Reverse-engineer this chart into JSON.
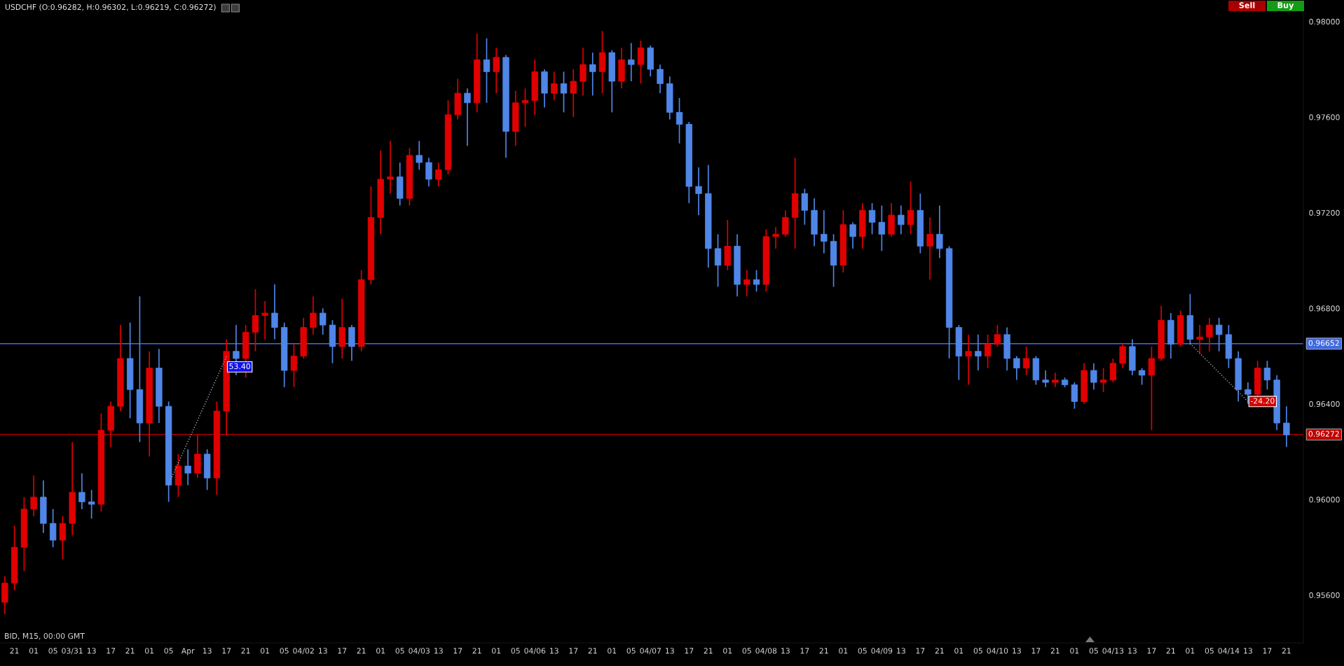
{
  "chart_data": {
    "type": "candlestick",
    "title": "USDCHF (O:0.96282, H:0.96302, L:0.96219, C:0.96272)",
    "categories": [
      null,
      "21",
      null,
      "01",
      null,
      "05",
      null,
      "03/31",
      null,
      "13",
      null,
      "17",
      null,
      "21",
      null,
      "01",
      null,
      "05",
      null,
      "Apr",
      null,
      "13",
      null,
      "17",
      null,
      "21",
      null,
      "01",
      null,
      "05",
      null,
      "04/02",
      null,
      "13",
      null,
      "17",
      null,
      "21",
      null,
      "01",
      null,
      "05",
      null,
      "04/03",
      null,
      "13",
      null,
      "17",
      null,
      "21",
      null,
      "01",
      null,
      "05",
      null,
      "04/06",
      null,
      "13",
      null,
      "17",
      null,
      "21",
      null,
      "01",
      null,
      "05",
      null,
      "04/07",
      null,
      "13",
      null,
      "17",
      null,
      "21",
      null,
      "01",
      null,
      "05",
      null,
      "04/08",
      null,
      "13",
      null,
      "17",
      null,
      "21",
      null,
      "01",
      null,
      "05",
      null,
      "04/09",
      null,
      "13",
      null,
      "17",
      null,
      "21",
      null,
      "01",
      null,
      "05",
      null,
      "04/10",
      null,
      "13",
      null,
      "17",
      null,
      "21",
      null,
      "01",
      null,
      "05",
      null,
      "04/13",
      null,
      "13",
      null,
      "17",
      null,
      "21",
      null,
      "01",
      null,
      "05",
      null,
      "04/14",
      null,
      "13",
      null,
      "17",
      null,
      "21"
    ],
    "ohlc": [
      [
        0.9557,
        0.9568,
        0.9552,
        0.9565
      ],
      [
        0.9565,
        0.9589,
        0.9562,
        0.958
      ],
      [
        0.958,
        0.9601,
        0.957,
        0.9596
      ],
      [
        0.9596,
        0.961,
        0.9593,
        0.9601
      ],
      [
        0.9601,
        0.9608,
        0.9586,
        0.959
      ],
      [
        0.959,
        0.9596,
        0.958,
        0.9583
      ],
      [
        0.9583,
        0.9593,
        0.9575,
        0.959
      ],
      [
        0.959,
        0.9624,
        0.9585,
        0.9603
      ],
      [
        0.9603,
        0.9611,
        0.9596,
        0.9599
      ],
      [
        0.9599,
        0.9604,
        0.9592,
        0.9598
      ],
      [
        0.9598,
        0.9636,
        0.9595,
        0.9629
      ],
      [
        0.9629,
        0.9641,
        0.9622,
        0.9639
      ],
      [
        0.9639,
        0.9673,
        0.9637,
        0.9659
      ],
      [
        0.9659,
        0.9674,
        0.9634,
        0.9646
      ],
      [
        0.9646,
        0.9685,
        0.9624,
        0.9632
      ],
      [
        0.9632,
        0.9662,
        0.9618,
        0.9655
      ],
      [
        0.9655,
        0.9663,
        0.9632,
        0.9639
      ],
      [
        0.9639,
        0.9641,
        0.9599,
        0.9606
      ],
      [
        0.9606,
        0.9619,
        0.9601,
        0.9614
      ],
      [
        0.9614,
        0.9621,
        0.9606,
        0.9611
      ],
      [
        0.9611,
        0.9627,
        0.9609,
        0.9619
      ],
      [
        0.9619,
        0.9621,
        0.9604,
        0.9609
      ],
      [
        0.9609,
        0.9641,
        0.9602,
        0.9637
      ],
      [
        0.9637,
        0.9667,
        0.9627,
        0.9662
      ],
      [
        0.9662,
        0.9673,
        0.9652,
        0.9659
      ],
      [
        0.9659,
        0.9673,
        0.9651,
        0.967
      ],
      [
        0.967,
        0.9688,
        0.9662,
        0.9677
      ],
      [
        0.9677,
        0.9683,
        0.9667,
        0.9678
      ],
      [
        0.9678,
        0.969,
        0.9667,
        0.9672
      ],
      [
        0.9672,
        0.9674,
        0.9647,
        0.9654
      ],
      [
        0.9654,
        0.9665,
        0.9647,
        0.966
      ],
      [
        0.966,
        0.9676,
        0.9659,
        0.9672
      ],
      [
        0.9672,
        0.9685,
        0.9669,
        0.9678
      ],
      [
        0.9678,
        0.968,
        0.9669,
        0.9673
      ],
      [
        0.9673,
        0.9675,
        0.9657,
        0.9664
      ],
      [
        0.9664,
        0.9684,
        0.9659,
        0.9672
      ],
      [
        0.9672,
        0.9673,
        0.9658,
        0.9664
      ],
      [
        0.9664,
        0.9696,
        0.9662,
        0.9692
      ],
      [
        0.9692,
        0.9731,
        0.969,
        0.9718
      ],
      [
        0.9718,
        0.9746,
        0.9711,
        0.9734
      ],
      [
        0.9734,
        0.975,
        0.9728,
        0.9735
      ],
      [
        0.9735,
        0.9741,
        0.9723,
        0.9726
      ],
      [
        0.9726,
        0.9747,
        0.9723,
        0.9744
      ],
      [
        0.9744,
        0.975,
        0.9738,
        0.9741
      ],
      [
        0.9741,
        0.9743,
        0.9731,
        0.9734
      ],
      [
        0.9734,
        0.9741,
        0.9731,
        0.9738
      ],
      [
        0.9738,
        0.9767,
        0.9736,
        0.9761
      ],
      [
        0.9761,
        0.9776,
        0.9759,
        0.977
      ],
      [
        0.977,
        0.9772,
        0.9748,
        0.9766
      ],
      [
        0.9766,
        0.9795,
        0.9762,
        0.9784
      ],
      [
        0.9784,
        0.9793,
        0.9766,
        0.9779
      ],
      [
        0.9779,
        0.9789,
        0.977,
        0.9785
      ],
      [
        0.9785,
        0.9786,
        0.9743,
        0.9754
      ],
      [
        0.9754,
        0.9771,
        0.9748,
        0.9766
      ],
      [
        0.9766,
        0.9772,
        0.9756,
        0.9767
      ],
      [
        0.9767,
        0.9784,
        0.9761,
        0.9779
      ],
      [
        0.9779,
        0.978,
        0.9764,
        0.977
      ],
      [
        0.977,
        0.9779,
        0.9767,
        0.9774
      ],
      [
        0.9774,
        0.9779,
        0.9762,
        0.977
      ],
      [
        0.977,
        0.978,
        0.976,
        0.9775
      ],
      [
        0.9775,
        0.9789,
        0.9769,
        0.9782
      ],
      [
        0.9782,
        0.9787,
        0.9769,
        0.9779
      ],
      [
        0.9779,
        0.9796,
        0.977,
        0.9787
      ],
      [
        0.9787,
        0.9788,
        0.9762,
        0.9775
      ],
      [
        0.9775,
        0.9789,
        0.9772,
        0.9784
      ],
      [
        0.9784,
        0.9791,
        0.9775,
        0.9782
      ],
      [
        0.9782,
        0.9792,
        0.9774,
        0.9789
      ],
      [
        0.9789,
        0.979,
        0.9777,
        0.978
      ],
      [
        0.978,
        0.9782,
        0.977,
        0.9774
      ],
      [
        0.9774,
        0.9777,
        0.9759,
        0.9762
      ],
      [
        0.9762,
        0.9768,
        0.9749,
        0.9757
      ],
      [
        0.9757,
        0.9758,
        0.9724,
        0.9731
      ],
      [
        0.9731,
        0.9739,
        0.9719,
        0.9728
      ],
      [
        0.9728,
        0.974,
        0.9697,
        0.9705
      ],
      [
        0.9705,
        0.9711,
        0.9689,
        0.9698
      ],
      [
        0.9698,
        0.9717,
        0.9696,
        0.9706
      ],
      [
        0.9706,
        0.9711,
        0.9685,
        0.969
      ],
      [
        0.969,
        0.9696,
        0.9685,
        0.9692
      ],
      [
        0.9692,
        0.9696,
        0.9687,
        0.969
      ],
      [
        0.969,
        0.9713,
        0.9687,
        0.971
      ],
      [
        0.971,
        0.9714,
        0.9705,
        0.9711
      ],
      [
        0.9711,
        0.9721,
        0.971,
        0.9718
      ],
      [
        0.9718,
        0.9743,
        0.9705,
        0.9728
      ],
      [
        0.9728,
        0.973,
        0.9715,
        0.9721
      ],
      [
        0.9721,
        0.9726,
        0.9706,
        0.9711
      ],
      [
        0.9711,
        0.9721,
        0.9703,
        0.9708
      ],
      [
        0.9708,
        0.9711,
        0.9689,
        0.9698
      ],
      [
        0.9698,
        0.9721,
        0.9695,
        0.9715
      ],
      [
        0.9715,
        0.9716,
        0.9705,
        0.971
      ],
      [
        0.971,
        0.9724,
        0.9705,
        0.9721
      ],
      [
        0.9721,
        0.9724,
        0.9711,
        0.9716
      ],
      [
        0.9716,
        0.9723,
        0.9704,
        0.9711
      ],
      [
        0.9711,
        0.9724,
        0.971,
        0.9719
      ],
      [
        0.9719,
        0.9723,
        0.9711,
        0.9715
      ],
      [
        0.9715,
        0.9733,
        0.9711,
        0.9721
      ],
      [
        0.9721,
        0.9728,
        0.9703,
        0.9706
      ],
      [
        0.9706,
        0.9718,
        0.9692,
        0.9711
      ],
      [
        0.9711,
        0.9723,
        0.9701,
        0.9705
      ],
      [
        0.9705,
        0.9706,
        0.9659,
        0.9672
      ],
      [
        0.9672,
        0.9673,
        0.965,
        0.966
      ],
      [
        0.966,
        0.9669,
        0.9648,
        0.9662
      ],
      [
        0.9662,
        0.9669,
        0.9654,
        0.966
      ],
      [
        0.966,
        0.9669,
        0.9655,
        0.9665
      ],
      [
        0.9665,
        0.9673,
        0.9664,
        0.9669
      ],
      [
        0.9669,
        0.9672,
        0.9654,
        0.9659
      ],
      [
        0.9659,
        0.966,
        0.965,
        0.9655
      ],
      [
        0.9655,
        0.9664,
        0.9652,
        0.9659
      ],
      [
        0.9659,
        0.966,
        0.9648,
        0.965
      ],
      [
        0.965,
        0.9654,
        0.9647,
        0.9649
      ],
      [
        0.9649,
        0.9653,
        0.9647,
        0.965
      ],
      [
        0.965,
        0.9651,
        0.9647,
        0.9648
      ],
      [
        0.9648,
        0.9649,
        0.9638,
        0.9641
      ],
      [
        0.9641,
        0.9657,
        0.964,
        0.9654
      ],
      [
        0.9654,
        0.9657,
        0.9646,
        0.9649
      ],
      [
        0.9649,
        0.9655,
        0.9645,
        0.965
      ],
      [
        0.965,
        0.9659,
        0.9649,
        0.9657
      ],
      [
        0.9657,
        0.9665,
        0.9655,
        0.9664
      ],
      [
        0.9664,
        0.9667,
        0.9652,
        0.9654
      ],
      [
        0.9654,
        0.9655,
        0.9648,
        0.9652
      ],
      [
        0.9652,
        0.9664,
        0.9629,
        0.9659
      ],
      [
        0.9659,
        0.9681,
        0.9658,
        0.9675
      ],
      [
        0.9675,
        0.9678,
        0.9659,
        0.9665
      ],
      [
        0.9665,
        0.9679,
        0.9664,
        0.9677
      ],
      [
        0.9677,
        0.9686,
        0.9665,
        0.9667
      ],
      [
        0.9667,
        0.9673,
        0.9661,
        0.9668
      ],
      [
        0.9668,
        0.9676,
        0.9662,
        0.9673
      ],
      [
        0.9673,
        0.9676,
        0.9662,
        0.9669
      ],
      [
        0.9669,
        0.9673,
        0.9655,
        0.9659
      ],
      [
        0.9659,
        0.9662,
        0.9641,
        0.9646
      ],
      [
        0.9646,
        0.9649,
        0.964,
        0.9644
      ],
      [
        0.9644,
        0.9658,
        0.9643,
        0.9655
      ],
      [
        0.9655,
        0.9658,
        0.9646,
        0.965
      ],
      [
        0.965,
        0.9652,
        0.9629,
        0.9632
      ],
      [
        0.9632,
        0.9639,
        0.9622,
        0.9627
      ]
    ],
    "colors": [
      "#e00000",
      "#e00000",
      "#e00000",
      "#e00000",
      "#4f86e8",
      "#4f86e8",
      "#e00000",
      "#e00000",
      "#4f86e8",
      "#4f86e8",
      "#e00000",
      "#e00000",
      "#e00000",
      "#4f86e8",
      "#4f86e8",
      "#e00000",
      "#4f86e8",
      "#4f86e8",
      "#e00000",
      "#4f86e8",
      "#e00000",
      "#4f86e8",
      "#e00000",
      "#e00000",
      "#4f86e8",
      "#e00000",
      "#e00000",
      "#e00000",
      "#4f86e8",
      "#4f86e8",
      "#e00000",
      "#e00000",
      "#e00000",
      "#4f86e8",
      "#4f86e8",
      "#e00000",
      "#4f86e8",
      "#e00000",
      "#e00000",
      "#e00000",
      "#e00000",
      "#4f86e8",
      "#e00000",
      "#4f86e8",
      "#4f86e8",
      "#e00000",
      "#e00000",
      "#e00000",
      "#4f86e8",
      "#e00000",
      "#4f86e8",
      "#e00000",
      "#4f86e8",
      "#e00000",
      "#e00000",
      "#e00000",
      "#4f86e8",
      "#e00000",
      "#4f86e8",
      "#e00000",
      "#e00000",
      "#4f86e8",
      "#e00000",
      "#4f86e8",
      "#e00000",
      "#4f86e8",
      "#e00000",
      "#4f86e8",
      "#4f86e8",
      "#4f86e8",
      "#4f86e8",
      "#4f86e8",
      "#4f86e8",
      "#4f86e8",
      "#4f86e8",
      "#e00000",
      "#4f86e8",
      "#e00000",
      "#4f86e8",
      "#e00000",
      "#e00000",
      "#e00000",
      "#e00000",
      "#4f86e8",
      "#4f86e8",
      "#4f86e8",
      "#4f86e8",
      "#e00000",
      "#4f86e8",
      "#e00000",
      "#4f86e8",
      "#4f86e8",
      "#e00000",
      "#4f86e8",
      "#e00000",
      "#4f86e8",
      "#e00000",
      "#4f86e8",
      "#4f86e8",
      "#4f86e8",
      "#e00000",
      "#4f86e8",
      "#e00000",
      "#e00000",
      "#4f86e8",
      "#4f86e8",
      "#e00000",
      "#4f86e8",
      "#4f86e8",
      "#e00000",
      "#4f86e8",
      "#4f86e8",
      "#e00000",
      "#4f86e8",
      "#e00000",
      "#e00000",
      "#e00000",
      "#4f86e8",
      "#4f86e8",
      "#e00000",
      "#e00000",
      "#4f86e8",
      "#e00000",
      "#4f86e8",
      "#e00000",
      "#e00000",
      "#4f86e8",
      "#4f86e8",
      "#4f86e8",
      "#4f86e8",
      "#e00000",
      "#4f86e8",
      "#4f86e8",
      "#4f86e8"
    ],
    "series": [
      {
        "type": "line",
        "color": "#a8a8a8",
        "line_style": "dotted",
        "values": [
          null,
          null,
          null,
          null,
          null,
          null,
          null,
          null,
          null,
          null,
          null,
          null,
          null,
          null,
          null,
          null,
          null,
          0.96064,
          null,
          null,
          null,
          null,
          null,
          0.96598,
          null,
          null,
          null,
          null,
          null,
          null,
          null,
          null,
          null,
          null,
          null,
          null,
          null,
          null,
          null,
          null,
          null,
          null,
          null,
          null,
          null,
          null,
          null,
          null,
          null,
          null,
          null,
          null,
          null,
          null,
          null,
          null,
          null,
          null,
          null,
          null,
          null,
          null,
          null,
          null,
          null,
          null,
          null,
          null,
          null,
          null,
          null,
          null,
          null,
          null,
          null,
          null,
          null,
          null,
          null,
          null,
          null,
          null,
          null,
          null,
          null,
          null,
          null,
          null,
          null,
          null,
          null,
          null,
          null,
          null,
          null,
          null,
          null,
          null,
          null,
          null,
          null,
          null,
          null,
          null,
          null,
          null,
          null,
          null,
          null,
          null,
          null,
          null,
          null,
          null,
          null,
          null,
          null,
          null,
          null,
          null,
          null,
          null,
          null,
          null,
          null,
          null,
          null,
          null,
          null,
          null,
          null,
          null,
          null,
          null
        ]
      },
      {
        "type": "line",
        "color": "#a8a8a8",
        "line_style": "dotted",
        "values": [
          null,
          null,
          null,
          null,
          null,
          null,
          null,
          null,
          null,
          null,
          null,
          null,
          null,
          null,
          null,
          null,
          null,
          null,
          null,
          null,
          null,
          null,
          null,
          null,
          null,
          null,
          null,
          null,
          null,
          null,
          null,
          null,
          null,
          null,
          null,
          null,
          null,
          null,
          null,
          null,
          null,
          null,
          null,
          null,
          null,
          null,
          null,
          null,
          null,
          null,
          null,
          null,
          null,
          null,
          null,
          null,
          null,
          null,
          null,
          null,
          null,
          null,
          null,
          null,
          null,
          null,
          null,
          null,
          null,
          null,
          null,
          null,
          null,
          null,
          null,
          null,
          null,
          null,
          null,
          null,
          null,
          null,
          null,
          null,
          null,
          null,
          null,
          null,
          null,
          null,
          null,
          null,
          null,
          null,
          null,
          null,
          null,
          null,
          null,
          null,
          null,
          null,
          null,
          null,
          null,
          null,
          null,
          null,
          null,
          null,
          null,
          null,
          null,
          null,
          null,
          null,
          null,
          null,
          null,
          null,
          null,
          null,
          null,
          0.96652,
          null,
          null,
          null,
          null,
          null,
          0.9641,
          null,
          null,
          null,
          null
        ]
      }
    ],
    "ylim": [
      0.954,
      0.9809
    ],
    "yticks": [
      {
        "value": 0.956,
        "label": "0.95600"
      },
      {
        "value": 0.96,
        "label": "0.96000"
      },
      {
        "value": 0.964,
        "label": "0.96400"
      },
      {
        "value": 0.968,
        "label": "0.96800"
      },
      {
        "value": 0.972,
        "label": "0.97200"
      },
      {
        "value": 0.976,
        "label": "0.97600"
      },
      {
        "value": 0.98,
        "label": "0.98000"
      }
    ],
    "ref_lines": [
      {
        "axis": "y",
        "value": 0.96652,
        "label": "0.96652",
        "color": "#4169e1"
      },
      {
        "axis": "y",
        "value": 0.96272,
        "label": "0.96272",
        "color": "#c00000"
      }
    ],
    "annotations": [
      "BID, M15, 00:00 GMT",
      "Sell",
      "Buy",
      "53.40",
      "-24.20"
    ]
  }
}
